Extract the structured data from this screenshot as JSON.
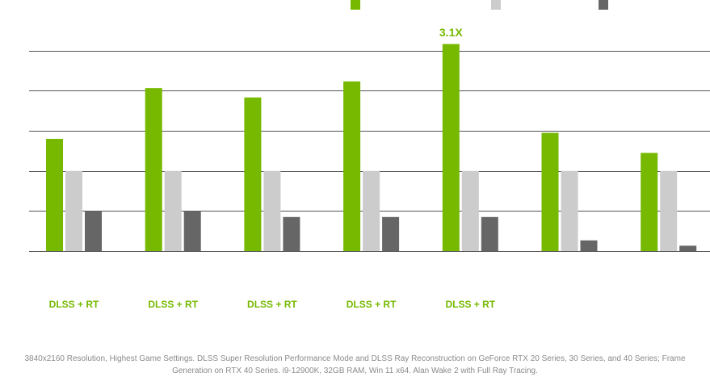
{
  "chart_data": {
    "type": "bar",
    "categories": [
      "DLSS + RT",
      "DLSS + RT",
      "DLSS + RT",
      "DLSS + RT",
      "DLSS + RT",
      "",
      ""
    ],
    "series": [
      {
        "color": "#76b900",
        "values": [
          1.68,
          2.44,
          2.3,
          2.54,
          3.1,
          1.77,
          1.47
        ]
      },
      {
        "color": "#cccccc",
        "values": [
          1.2,
          1.2,
          1.2,
          1.2,
          1.2,
          1.2,
          1.2
        ]
      },
      {
        "color": "#666666",
        "values": [
          0.6,
          0.6,
          0.51,
          0.51,
          0.51,
          0.16,
          0.08
        ]
      }
    ],
    "ylim": [
      0,
      3.3
    ],
    "grid": true,
    "legend": "top",
    "annotations": [
      {
        "category_index": 4,
        "series_index": 0,
        "text": "3.1X"
      }
    ]
  },
  "footnote": {
    "line1": "3840x2160 Resolution, Highest Game Settings. DLSS Super Resolution Performance Mode and DLSS Ray Reconstruction on GeForce RTX 20 Series, 30 Series, and 40 Series; Frame",
    "line2": "Generation on RTX 40 Series. i9-12900K, 32GB RAM, Win 11 x64. Alan Wake 2 with Full Ray Tracing."
  }
}
